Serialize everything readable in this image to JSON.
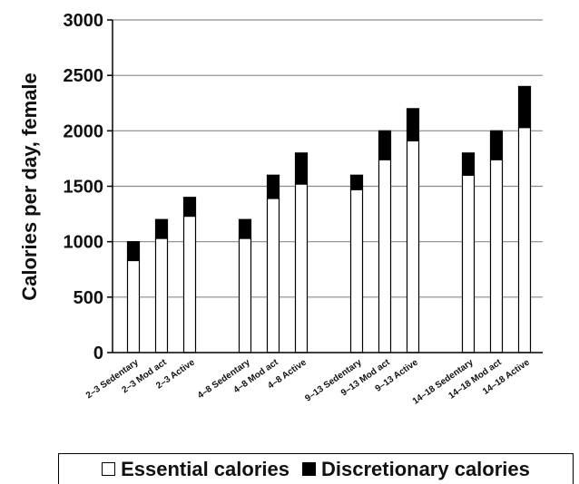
{
  "chart_data": {
    "type": "bar",
    "stacked": true,
    "title": "",
    "xlabel": "",
    "ylabel": "Calories per day, female",
    "ylim": [
      0,
      3000
    ],
    "yticks": [
      0,
      500,
      1000,
      1500,
      2000,
      2500,
      3000
    ],
    "grid": true,
    "legend_position": "bottom",
    "groups": [
      [
        "2–3 Sedentary",
        "2–3 Mod act",
        "2–3 Active"
      ],
      [
        "4–8 Sedentary",
        "4–8 Mod act",
        "4–8 Active"
      ],
      [
        "9–13 Sedentary",
        "9–13 Mod act",
        "9–13 Active"
      ],
      [
        "14–18 Sedentary",
        "14–18 Mod act",
        "14–18 Active"
      ]
    ],
    "categories": [
      "2–3 Sedentary",
      "2–3 Mod act",
      "2–3 Active",
      "4–8 Sedentary",
      "4–8 Mod act",
      "4–8 Active",
      "9–13 Sedentary",
      "9–13 Mod act",
      "9–13 Active",
      "14–18 Sedentary",
      "14–18 Mod act",
      "14–18 Active"
    ],
    "series": [
      {
        "name": "Essential calories",
        "color": "#ffffff",
        "values": [
          830,
          1030,
          1230,
          1030,
          1390,
          1520,
          1470,
          1740,
          1910,
          1600,
          1740,
          2030
        ]
      },
      {
        "name": "Discretionary calories",
        "color": "#000000",
        "values": [
          170,
          170,
          170,
          170,
          210,
          280,
          130,
          260,
          290,
          200,
          260,
          370
        ]
      }
    ]
  }
}
